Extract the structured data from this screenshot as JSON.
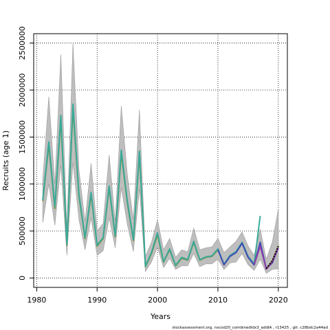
{
  "chart_data": {
    "type": "line",
    "title": "",
    "xlabel": "Years",
    "ylabel": "Recruits (age 1)",
    "xlim": [
      1979.5,
      2021.5
    ],
    "ylim": [
      -100000,
      2600000
    ],
    "x_ticks": [
      1980,
      1990,
      2000,
      2010,
      2020
    ],
    "x_tick_labels": [
      "1980",
      "1990",
      "2000",
      "2010",
      "2020"
    ],
    "y_ticks": [
      0,
      500000,
      1000000,
      1500000,
      2000000,
      2500000
    ],
    "y_tick_labels": [
      "0",
      "500000",
      "1000000",
      "1500000",
      "2000000",
      "2500000"
    ],
    "grid": true,
    "grid_style": "dotted",
    "band": {
      "name": "",
      "color": "#bebebe",
      "x": [
        1981,
        1982,
        1983,
        1984,
        1985,
        1986,
        1987,
        1988,
        1989,
        1990,
        1991,
        1992,
        1993,
        1994,
        1995,
        1996,
        1997,
        1998,
        1999,
        2000,
        2001,
        2002,
        2003,
        2004,
        2005,
        2006,
        2007,
        2008,
        2009,
        2010,
        2011,
        2012,
        2013,
        2014,
        2015,
        2016,
        2017,
        2018,
        2019,
        2020
      ],
      "upper": [
        1050000,
        1930000,
        1000000,
        2380000,
        520000,
        2500000,
        1150000,
        600000,
        1220000,
        500000,
        580000,
        1310000,
        600000,
        1830000,
        1100000,
        620000,
        1790000,
        230000,
        380000,
        620000,
        300000,
        420000,
        220000,
        300000,
        280000,
        530000,
        300000,
        320000,
        330000,
        420000,
        270000,
        330000,
        390000,
        490000,
        340000,
        240000,
        520000,
        200000,
        380000,
        730000
      ],
      "lower": [
        590000,
        1000000,
        560000,
        1200000,
        240000,
        1230000,
        620000,
        300000,
        640000,
        240000,
        290000,
        640000,
        320000,
        960000,
        570000,
        280000,
        950000,
        70000,
        170000,
        330000,
        110000,
        210000,
        90000,
        130000,
        130000,
        260000,
        120000,
        150000,
        150000,
        200000,
        90000,
        160000,
        170000,
        260000,
        140000,
        80000,
        200000,
        50000,
        90000,
        100000
      ]
    },
    "series": [
      {
        "name": "",
        "color": "#7a8a2a",
        "x": [
          1981,
          1982,
          1983,
          1984,
          1985,
          1986,
          1987,
          1988,
          1989,
          1990,
          1991,
          1992,
          1993,
          1994,
          1995,
          1996,
          1997,
          1998,
          1999,
          2000,
          2001,
          2002,
          2003,
          2004,
          2005,
          2006,
          2007,
          2008,
          2009,
          2010,
          2011,
          2012,
          2013,
          2014,
          2015,
          2016,
          2017,
          2018,
          2019,
          2020
        ],
        "values": [
          820000,
          1420000,
          740000,
          1690000,
          350000,
          1810000,
          870000,
          420000,
          890000,
          340000,
          420000,
          960000,
          440000,
          1330000,
          800000,
          400000,
          1320000,
          120000,
          260000,
          460000,
          170000,
          300000,
          130000,
          210000,
          190000,
          380000,
          190000,
          220000,
          230000,
          300000,
          140000,
          230000,
          270000,
          370000,
          220000,
          140000,
          350000,
          100000,
          180000,
          330000
        ]
      },
      {
        "name": "",
        "color": "#3aaa9a",
        "x": [
          1981,
          1982,
          1983,
          1984,
          1985,
          1986,
          1987,
          1988,
          1989,
          1990,
          1991,
          1992,
          1993,
          1994,
          1995,
          1996,
          1997,
          1998,
          1999,
          2000,
          2001,
          2002,
          2003,
          2004,
          2005,
          2006,
          2007,
          2008,
          2009,
          2010,
          2011,
          2012,
          2013,
          2014,
          2015,
          2016,
          2017
        ],
        "values": [
          830000,
          1450000,
          760000,
          1730000,
          360000,
          1850000,
          890000,
          430000,
          910000,
          350000,
          430000,
          980000,
          450000,
          1360000,
          820000,
          410000,
          1350000,
          125000,
          270000,
          480000,
          175000,
          310000,
          135000,
          220000,
          195000,
          390000,
          195000,
          225000,
          235000,
          310000,
          145000,
          240000,
          280000,
          380000,
          230000,
          150000,
          660000
        ]
      },
      {
        "name": "",
        "color": "#3f4fb8",
        "x": [
          2010,
          2011,
          2012,
          2013,
          2014,
          2015,
          2016,
          2017,
          2018,
          2019,
          2020
        ],
        "values": [
          300000,
          140000,
          230000,
          270000,
          370000,
          220000,
          140000,
          380000,
          100000,
          160000,
          320000
        ]
      },
      {
        "name": "",
        "color": "#8f3fa8",
        "x": [
          2016,
          2017,
          2018,
          2019,
          2020
        ],
        "values": [
          140000,
          340000,
          95000,
          170000,
          320000
        ]
      },
      {
        "name": "",
        "color": "#000000",
        "x": [
          2018,
          2019,
          2020
        ],
        "values": [
          100000,
          180000,
          340000
        ],
        "dashed": true
      }
    ],
    "footer": "stockassessment.org,  nscod20_combinedIdx3_addIA  ,  r13425  ,  git:  c28bdc2a44ad"
  }
}
